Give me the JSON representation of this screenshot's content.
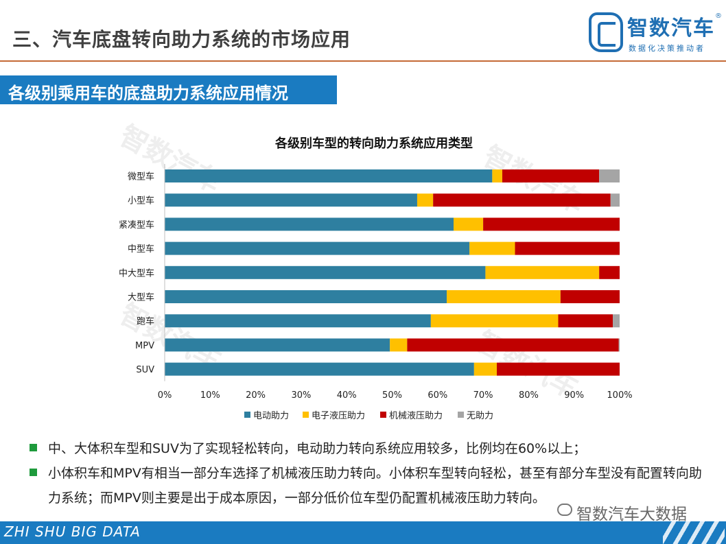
{
  "header": {
    "title": "三、汽车底盘转向助力系统的市场应用",
    "logo": {
      "name": "智数汽车",
      "reg": "®",
      "tagline": "数据化决策推动者"
    }
  },
  "section": {
    "title": "各级别乘用车的底盘助力系统应用情况"
  },
  "watermark": {
    "text": "智数汽车"
  },
  "chart_data": {
    "type": "bar",
    "orientation": "horizontal",
    "stacked": true,
    "title": "各级别车型的转向助力系统应用类型",
    "xlabel": "",
    "ylabel": "",
    "categories": [
      "微型车",
      "小型车",
      "紧凑型车",
      "中型车",
      "中大型车",
      "大型车",
      "跑车",
      "MPV",
      "SUV"
    ],
    "x_ticks": [
      "0%",
      "10%",
      "20%",
      "30%",
      "40%",
      "50%",
      "60%",
      "70%",
      "80%",
      "90%",
      "100%"
    ],
    "xlim": [
      0,
      100
    ],
    "legend_position": "bottom",
    "grid": false,
    "series": [
      {
        "name": "电动助力",
        "color": "#2e7fa0",
        "values": [
          72,
          55.5,
          63.5,
          67,
          70.5,
          62,
          58.5,
          49.5,
          68
        ]
      },
      {
        "name": "电子液压助力",
        "color": "#ffc000",
        "values": [
          2.2,
          3.5,
          6.5,
          10,
          25,
          25,
          28,
          3.8,
          5
        ]
      },
      {
        "name": "机械液压助力",
        "color": "#c00000",
        "values": [
          21.3,
          39,
          30,
          23,
          4.5,
          13,
          12,
          46.5,
          27
        ]
      },
      {
        "name": "无助力",
        "color": "#a5a5a5",
        "values": [
          4.5,
          2,
          0,
          0,
          0,
          0,
          1.5,
          0.2,
          0
        ]
      }
    ]
  },
  "bullets": [
    "中、大体积车型和SUV为了实现轻松转向，电动助力转向系统应用较多，比例均在60%以上；",
    "小体积车和MPV有相当一部分车选择了机械液压助力转向。小体积车型转向轻松，甚至有部分车型没有配置转向助力系统；而MPV则主要是出于成本原因，一部分低价位车型仍配置机械液压助力转向。"
  ],
  "footer": {
    "text": "ZHI SHU BIG DATA",
    "wechat": "智数汽车大数据"
  }
}
